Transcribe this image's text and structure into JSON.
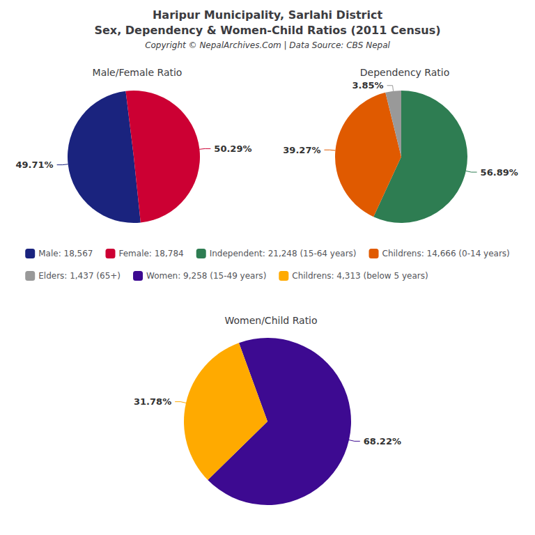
{
  "title": "Haripur Municipality, Sarlahi District",
  "subtitle": "Sex, Dependency & Women-Child Ratios (2011 Census)",
  "annotations": [
    "Copyright © NepalArchives.Com | Data Source: CBS Nepal"
  ],
  "chart_data": [
    {
      "type": "pie",
      "title": "Male/Female Ratio",
      "categories": [
        "Male: 18,567",
        "Female: 18,784"
      ],
      "values": [
        49.71,
        50.29
      ],
      "value_labels": [
        "49.71%",
        "50.29%"
      ],
      "colors": [
        "#1a237e",
        "#cc0033"
      ],
      "data_labels": true,
      "legend": "center"
    },
    {
      "type": "pie",
      "title": "Dependency Ratio",
      "categories": [
        "Independent: 21,248 (15-64 years)",
        "Childrens: 14,666 (0-14 years)",
        "Elders: 1,437 (65+)"
      ],
      "values": [
        56.89,
        39.27,
        3.85
      ],
      "value_labels": [
        "56.89%",
        "39.27%",
        "3.85%"
      ],
      "colors": [
        "#2e7d52",
        "#e05a00",
        "#999999"
      ],
      "data_labels": true,
      "legend": "center"
    },
    {
      "type": "pie",
      "title": "Women/Child Ratio",
      "categories": [
        "Women: 9,258 (15-49 years)",
        "Childrens: 4,313 (below 5 years)"
      ],
      "values": [
        68.22,
        31.78
      ],
      "value_labels": [
        "68.22%",
        "31.78%"
      ],
      "colors": [
        "#3d0a91",
        "#ffaa00"
      ],
      "data_labels": true,
      "legend": "center"
    }
  ]
}
